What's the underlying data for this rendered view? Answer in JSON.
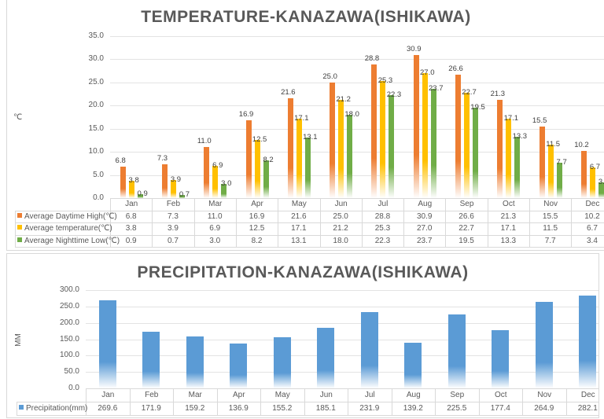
{
  "chart_data": [
    {
      "type": "bar",
      "title": "TEMPERATURE-KANAZAWA(ISHIKAWA)",
      "ylabel": "℃",
      "xlabel": "",
      "ylim": [
        0,
        35
      ],
      "yticks": [
        "0.0",
        "5.0",
        "10.0",
        "15.0",
        "20.0",
        "25.0",
        "30.0",
        "35.0"
      ],
      "grid": true,
      "legend": "data-table",
      "categories": [
        "Jan",
        "Feb",
        "Mar",
        "Apr",
        "May",
        "Jun",
        "Jul",
        "Aug",
        "Sep",
        "Oct",
        "Nov",
        "Dec"
      ],
      "series": [
        {
          "name": "Average Daytime High(℃)",
          "color": "#ed7d31",
          "values": [
            6.8,
            7.3,
            11.0,
            16.9,
            21.6,
            25.0,
            28.8,
            30.9,
            26.6,
            21.3,
            15.5,
            10.2
          ]
        },
        {
          "name": "Average temperature(℃)",
          "color": "#ffc000",
          "values": [
            3.8,
            3.9,
            6.9,
            12.5,
            17.1,
            21.2,
            25.3,
            27.0,
            22.7,
            17.1,
            11.5,
            6.7
          ]
        },
        {
          "name": "Average Nighttime Low(℃)",
          "color": "#70ad47",
          "values": [
            0.9,
            0.7,
            3.0,
            8.2,
            13.1,
            18.0,
            22.3,
            23.7,
            19.5,
            13.3,
            7.7,
            3.4
          ]
        }
      ]
    },
    {
      "type": "bar",
      "title": "PRECIPITATION-KANAZAWA(ISHIKAWA)",
      "ylabel": "MM",
      "xlabel": "",
      "ylim": [
        0,
        300
      ],
      "yticks": [
        "0.0",
        "50.0",
        "100.0",
        "150.0",
        "200.0",
        "250.0",
        "300.0"
      ],
      "grid": true,
      "legend": "data-table",
      "categories": [
        "Jan",
        "Feb",
        "Mar",
        "Apr",
        "May",
        "Jun",
        "Jul",
        "Aug",
        "Sep",
        "Oct",
        "Nov",
        "Dec"
      ],
      "series": [
        {
          "name": "Precipitation(mm)",
          "color": "#5b9bd5",
          "values": [
            269.6,
            171.9,
            159.2,
            136.9,
            155.2,
            185.1,
            231.9,
            139.2,
            225.5,
            177.4,
            264.9,
            282.1
          ]
        }
      ]
    }
  ]
}
